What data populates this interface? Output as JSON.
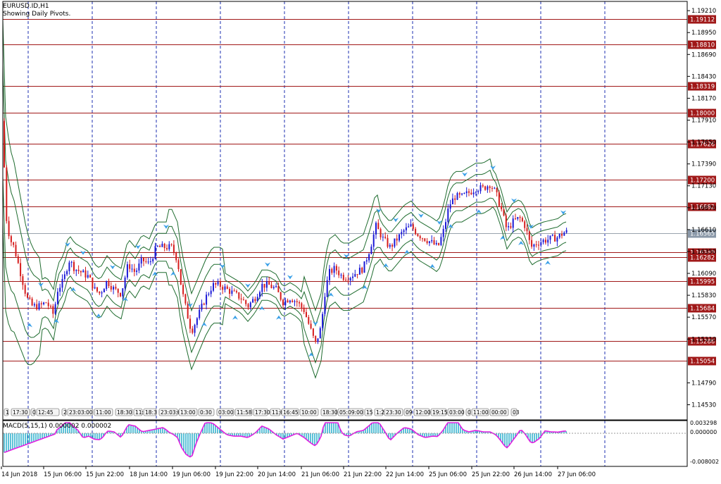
{
  "header": {
    "symbol_line": "EURUSD.ID,H1",
    "subtitle": "Showing Daily Pivots."
  },
  "macd": {
    "label": "MACD(5,15,1) 0.000002 0.000002",
    "axis": [
      "0.003298",
      "0.000000",
      "-0.008002"
    ]
  },
  "price_axis": {
    "ticks": [
      "1.19210",
      "1.18950",
      "1.18690",
      "1.18430",
      "1.18170",
      "1.17910",
      "1.17650",
      "1.17390",
      "1.17130",
      "1.16870",
      "1.16610",
      "1.16350",
      "1.16090",
      "1.15830",
      "1.15570",
      "1.15310",
      "1.14790",
      "1.14530"
    ],
    "current_price": "1.16565"
  },
  "pivots": [
    "1.19112",
    "1.18810",
    "1.18319",
    "1.18000",
    "1.17626",
    "1.17200",
    "1.16882",
    "1.16340",
    "1.16282",
    "1.15995",
    "1.15684",
    "1.15286",
    "1.15054"
  ],
  "time_axis": [
    "14 Jun 2018",
    "15 Jun 06:00",
    "15 Jun 22:00",
    "18 Jun 14:00",
    "19 Jun 06:00",
    "19 Jun 22:00",
    "20 Jun 14:00",
    "21 Jun 06:00",
    "21 Jun 22:00",
    "22 Jun 14:00",
    "25 Jun 06:00",
    "25 Jun 22:00",
    "26 Jun 14:00",
    "27 Jun 06:00"
  ],
  "session_labels": [
    "1",
    "17:30",
    "0",
    "12:45",
    "2",
    "23:03:00",
    "11:00",
    "18:30",
    "11:15",
    "18:3",
    "23:03:00",
    "13:00",
    "0:30",
    "03:00",
    "11:58",
    "17:30",
    "11:0",
    "16:45",
    "10:00",
    "18:30",
    "05:09:00",
    "15",
    "1:20",
    "23:30",
    "09",
    "12:00",
    "19:15",
    "03:00",
    "0",
    "11:00",
    "00:00",
    "03"
  ],
  "colors": {
    "bull": "#1a18d6",
    "bear": "#d61c1c",
    "pivot": "#a01818",
    "band": "#1e6b2e",
    "grid": "#1e2fb0",
    "macd_hist": "#18a8c8",
    "macd_signal": "#e020e0",
    "arrow": "#3aa0e8"
  }
}
